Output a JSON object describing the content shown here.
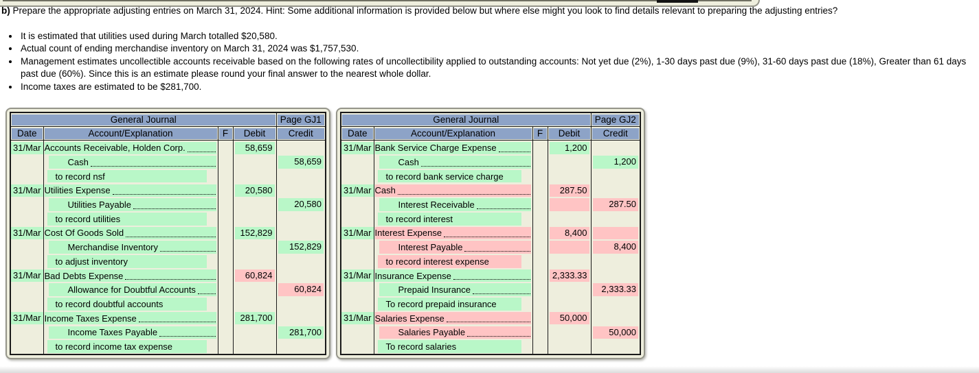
{
  "question": {
    "label": "b)",
    "text": "Prepare the appropriate adjusting entries on March 31, 2024. Hint: Some additional information is provided below but where else might you look to find details relevant to preparing the adjusting entries?",
    "bullets": [
      "It is estimated that utilities used during March totalled $20,580.",
      "Actual count of ending merchandise inventory on March 31, 2024 was $1,757,530.",
      "Management estimates uncollectible accounts receivable based on the following rates of uncollectibility applied to outstanding accounts: Not yet due (2%), 1-30 days past due (9%), 31-60 days past due (18%), Greater than 61 days past due (60%). Since this is an estimate please round your final answer to the nearest whole dollar.",
      "Income taxes are estimated to be $281,700."
    ]
  },
  "colors": {
    "correct": "#b9f7c8",
    "incorrect": "#ffc4c4",
    "header_blue": "#8da3c7",
    "paper": "#eeeedd"
  },
  "journals": [
    {
      "title": "General Journal",
      "page": "Page GJ1",
      "headers": {
        "date": "Date",
        "account": "Account/Explanation",
        "f": "F",
        "debit": "Debit",
        "credit": "Credit"
      },
      "rows": [
        {
          "date": "31/Mar",
          "kind": "account",
          "text": "Accounts Receivable, Holden Corp.",
          "state": "green",
          "debit": {
            "text": "58,659",
            "state": "green"
          },
          "credit": null
        },
        {
          "date": null,
          "kind": "sub",
          "text": "Cash",
          "state": "green",
          "debit": null,
          "credit": {
            "text": "58,659",
            "state": "green"
          }
        },
        {
          "date": null,
          "kind": "memo",
          "text": "to record nsf",
          "state": "green",
          "debit": null,
          "credit": null
        },
        {
          "date": "31/Mar",
          "kind": "account",
          "text": "Utilities Expense",
          "state": "green",
          "debit": {
            "text": "20,580",
            "state": "green"
          },
          "credit": null
        },
        {
          "date": null,
          "kind": "sub",
          "text": "Utilities Payable",
          "state": "green",
          "debit": null,
          "credit": {
            "text": "20,580",
            "state": "green"
          }
        },
        {
          "date": null,
          "kind": "memo",
          "text": "to record utilities",
          "state": "green",
          "debit": null,
          "credit": null
        },
        {
          "date": "31/Mar",
          "kind": "account",
          "text": "Cost Of Goods Sold",
          "state": "green",
          "debit": {
            "text": "152,829",
            "state": "green"
          },
          "credit": null
        },
        {
          "date": null,
          "kind": "sub",
          "text": "Merchandise Inventory",
          "state": "green",
          "debit": null,
          "credit": {
            "text": "152,829",
            "state": "green"
          }
        },
        {
          "date": null,
          "kind": "memo",
          "text": "to adjust inventory",
          "state": "green",
          "debit": null,
          "credit": null
        },
        {
          "date": "31/Mar",
          "kind": "account",
          "text": "Bad Debts Expense",
          "state": "green",
          "debit": {
            "text": "60,824",
            "state": "pink"
          },
          "credit": null
        },
        {
          "date": null,
          "kind": "sub",
          "text": "Allowance for Doubtful Accounts",
          "state": "green",
          "debit": null,
          "credit": {
            "text": "60,824",
            "state": "pink"
          }
        },
        {
          "date": null,
          "kind": "memo",
          "text": "to record doubtful accounts",
          "state": "green",
          "debit": null,
          "credit": null
        },
        {
          "date": "31/Mar",
          "kind": "account",
          "text": "Income Taxes Expense",
          "state": "green",
          "debit": {
            "text": "281,700",
            "state": "green"
          },
          "credit": null
        },
        {
          "date": null,
          "kind": "sub",
          "text": "Income Taxes Payable",
          "state": "green",
          "debit": null,
          "credit": {
            "text": "281,700",
            "state": "green"
          }
        },
        {
          "date": null,
          "kind": "memo",
          "text": "to record income tax expense",
          "state": "green",
          "debit": null,
          "credit": null
        }
      ]
    },
    {
      "title": "General Journal",
      "page": "Page GJ2",
      "headers": {
        "date": "Date",
        "account": "Account/Explanation",
        "f": "F",
        "debit": "Debit",
        "credit": "Credit"
      },
      "rows": [
        {
          "date": "31/Mar",
          "kind": "account",
          "text": "Bank Service Charge Expense",
          "state": "green",
          "debit": {
            "text": "1,200",
            "state": "green"
          },
          "credit": null
        },
        {
          "date": null,
          "kind": "sub",
          "text": "Cash",
          "state": "green",
          "debit": null,
          "credit": {
            "text": "1,200",
            "state": "green"
          }
        },
        {
          "date": null,
          "kind": "memo",
          "text": "to record bank service charge",
          "state": "green",
          "debit": null,
          "credit": null
        },
        {
          "date": "31/Mar",
          "kind": "account",
          "text": "Cash",
          "state": "pink",
          "debit": {
            "text": "287.50",
            "state": "pink"
          },
          "credit": null
        },
        {
          "date": null,
          "kind": "sub",
          "text": "Interest Receivable",
          "state": "green",
          "debit": {
            "text": "",
            "state": "pink"
          },
          "credit": {
            "text": "287.50",
            "state": "pink"
          }
        },
        {
          "date": null,
          "kind": "memo",
          "text": "to record interest",
          "state": "green",
          "debit": null,
          "credit": null
        },
        {
          "date": "31/Mar",
          "kind": "account",
          "text": "Interest Expense",
          "state": "pink",
          "debit": {
            "text": "8,400",
            "state": "pink"
          },
          "credit": {
            "text": "",
            "state": "pink"
          }
        },
        {
          "date": null,
          "kind": "sub",
          "text": "Interest Payable",
          "state": "pink",
          "debit": {
            "text": "",
            "state": "pink"
          },
          "credit": {
            "text": "8,400",
            "state": "pink"
          }
        },
        {
          "date": null,
          "kind": "memo",
          "text": "to record interest expense",
          "state": "pink",
          "debit": null,
          "credit": null
        },
        {
          "date": "31/Mar",
          "kind": "account",
          "text": "Insurance Expense",
          "state": "green",
          "debit": {
            "text": "2,333.33",
            "state": "pink"
          },
          "credit": null
        },
        {
          "date": null,
          "kind": "sub",
          "text": "Prepaid Insurance",
          "state": "green",
          "debit": null,
          "credit": {
            "text": "2,333.33",
            "state": "pink"
          }
        },
        {
          "date": null,
          "kind": "memo",
          "text": "To record prepaid insurance",
          "state": "green",
          "debit": null,
          "credit": null
        },
        {
          "date": "31/Mar",
          "kind": "account",
          "text": "Salaries Expense",
          "state": "pink",
          "debit": {
            "text": "50,000",
            "state": "pink"
          },
          "credit": null
        },
        {
          "date": null,
          "kind": "sub",
          "text": "Salaries Payable",
          "state": "pink",
          "debit": null,
          "credit": {
            "text": "50,000",
            "state": "pink"
          }
        },
        {
          "date": null,
          "kind": "memo",
          "text": "To record salaries",
          "state": "green",
          "debit": null,
          "credit": null
        }
      ]
    }
  ]
}
